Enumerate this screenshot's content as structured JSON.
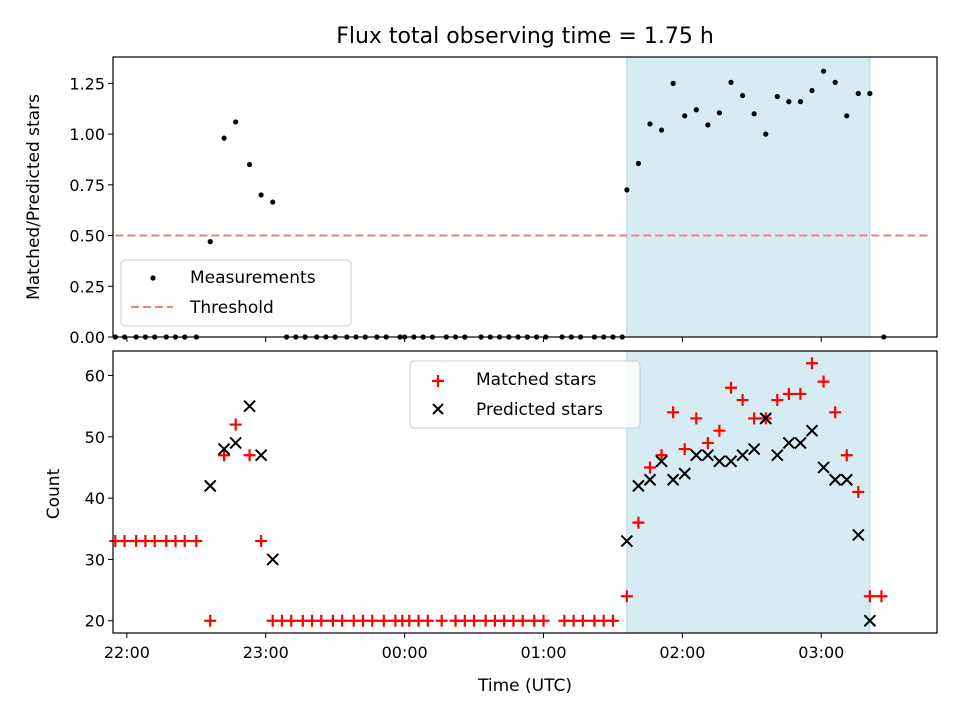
{
  "chart_data": [
    {
      "type": "scatter",
      "title": "Flux total observing time = 1.75 h",
      "xlabel": "",
      "ylabel": "Matched/Predicted stars",
      "xlim": [
        "21:54",
        "03:50"
      ],
      "ylim": [
        0,
        1.38
      ],
      "yticks": [
        "0.00",
        "0.25",
        "0.50",
        "0.75",
        "1.00",
        "1.25"
      ],
      "grid": false,
      "legend_position": "lower-left",
      "shaded_interval": [
        "01:36",
        "03:21"
      ],
      "threshold": {
        "name": "Threshold",
        "y": 0.5,
        "x": [
          "21:55",
          "03:47"
        ]
      },
      "series": [
        {
          "name": "Measurements",
          "points": [
            [
              "21:55",
              0
            ],
            [
              "21:59",
              0
            ],
            [
              "22:04",
              0
            ],
            [
              "22:08",
              0
            ],
            [
              "22:12",
              0
            ],
            [
              "22:17",
              0
            ],
            [
              "22:21",
              0
            ],
            [
              "22:25",
              0
            ],
            [
              "22:30",
              0
            ],
            [
              "22:36",
              0.47
            ],
            [
              "22:42",
              0.98
            ],
            [
              "22:47",
              1.06
            ],
            [
              "22:53",
              0.85
            ],
            [
              "22:58",
              0.7
            ],
            [
              "23:03",
              0.665
            ],
            [
              "23:09",
              0
            ],
            [
              "23:13",
              0
            ],
            [
              "23:17",
              0
            ],
            [
              "23:22",
              0
            ],
            [
              "23:26",
              0
            ],
            [
              "23:30",
              0
            ],
            [
              "23:35",
              0
            ],
            [
              "23:39",
              0
            ],
            [
              "23:43",
              0
            ],
            [
              "23:48",
              0
            ],
            [
              "23:52",
              0
            ],
            [
              "23:58",
              0
            ],
            [
              "00:00",
              0
            ],
            [
              "00:04",
              0
            ],
            [
              "00:08",
              0
            ],
            [
              "00:12",
              0
            ],
            [
              "00:18",
              0
            ],
            [
              "00:22",
              0
            ],
            [
              "00:26",
              0
            ],
            [
              "00:33",
              0
            ],
            [
              "00:37",
              0
            ],
            [
              "00:41",
              0
            ],
            [
              "00:45",
              0
            ],
            [
              "00:49",
              0
            ],
            [
              "00:53",
              0
            ],
            [
              "00:57",
              0
            ],
            [
              "01:01",
              0
            ],
            [
              "01:08",
              0
            ],
            [
              "01:12",
              0
            ],
            [
              "01:16",
              0
            ],
            [
              "01:22",
              0
            ],
            [
              "01:26",
              0
            ],
            [
              "01:30",
              0
            ],
            [
              "01:34",
              0
            ],
            [
              "01:36",
              0.725
            ],
            [
              "01:41",
              0.855
            ],
            [
              "01:46",
              1.05
            ],
            [
              "01:51",
              1.02
            ],
            [
              "01:56",
              1.25
            ],
            [
              "02:01",
              1.09
            ],
            [
              "02:06",
              1.12
            ],
            [
              "02:11",
              1.045
            ],
            [
              "02:16",
              1.105
            ],
            [
              "02:21",
              1.255
            ],
            [
              "02:26",
              1.19
            ],
            [
              "02:31",
              1.1
            ],
            [
              "02:36",
              1.0
            ],
            [
              "02:41",
              1.185
            ],
            [
              "02:46",
              1.16
            ],
            [
              "02:51",
              1.16
            ],
            [
              "02:56",
              1.215
            ],
            [
              "03:01",
              1.31
            ],
            [
              "03:06",
              1.255
            ],
            [
              "03:11",
              1.09
            ],
            [
              "03:16",
              1.2
            ],
            [
              "03:21",
              1.2
            ],
            [
              "03:27",
              0
            ]
          ]
        }
      ]
    },
    {
      "type": "scatter",
      "title": "",
      "xlabel": "Time (UTC)",
      "ylabel": "Count",
      "xlim": [
        "21:54",
        "03:50"
      ],
      "ylim": [
        18,
        64
      ],
      "yticks": [
        "20",
        "30",
        "40",
        "50",
        "60"
      ],
      "xticks": [
        "22:00",
        "23:00",
        "00:00",
        "01:00",
        "02:00",
        "03:00"
      ],
      "grid": false,
      "legend_position": "top-center",
      "shaded_interval": [
        "01:36",
        "03:21"
      ],
      "series": [
        {
          "name": "Matched stars",
          "points": [
            [
              "21:55",
              33
            ],
            [
              "21:59",
              33
            ],
            [
              "22:04",
              33
            ],
            [
              "22:08",
              33
            ],
            [
              "22:12",
              33
            ],
            [
              "22:17",
              33
            ],
            [
              "22:21",
              33
            ],
            [
              "22:25",
              33
            ],
            [
              "22:30",
              33
            ],
            [
              "22:36",
              20
            ],
            [
              "22:42",
              47
            ],
            [
              "22:47",
              52
            ],
            [
              "22:53",
              47
            ],
            [
              "22:58",
              33
            ],
            [
              "23:03",
              20
            ],
            [
              "23:07",
              20
            ],
            [
              "23:11",
              20
            ],
            [
              "23:16",
              20
            ],
            [
              "23:20",
              20
            ],
            [
              "23:24",
              20
            ],
            [
              "23:29",
              20
            ],
            [
              "23:33",
              20
            ],
            [
              "23:38",
              20
            ],
            [
              "23:42",
              20
            ],
            [
              "23:46",
              20
            ],
            [
              "23:51",
              20
            ],
            [
              "23:56",
              20
            ],
            [
              "23:59",
              20
            ],
            [
              "00:02",
              20
            ],
            [
              "00:06",
              20
            ],
            [
              "00:10",
              20
            ],
            [
              "00:16",
              20
            ],
            [
              "00:22",
              20
            ],
            [
              "00:26",
              20
            ],
            [
              "00:30",
              20
            ],
            [
              "00:35",
              20
            ],
            [
              "00:39",
              20
            ],
            [
              "00:43",
              20
            ],
            [
              "00:47",
              20
            ],
            [
              "00:51",
              20
            ],
            [
              "00:56",
              20
            ],
            [
              "01:00",
              20
            ],
            [
              "01:09",
              20
            ],
            [
              "01:13",
              20
            ],
            [
              "01:17",
              20
            ],
            [
              "01:22",
              20
            ],
            [
              "01:26",
              20
            ],
            [
              "01:30",
              20
            ],
            [
              "01:36",
              24
            ],
            [
              "01:41",
              36
            ],
            [
              "01:46",
              45
            ],
            [
              "01:51",
              47
            ],
            [
              "01:56",
              54
            ],
            [
              "02:01",
              48
            ],
            [
              "02:06",
              53
            ],
            [
              "02:11",
              49
            ],
            [
              "02:16",
              51
            ],
            [
              "02:21",
              58
            ],
            [
              "02:26",
              56
            ],
            [
              "02:31",
              53
            ],
            [
              "02:36",
              53
            ],
            [
              "02:41",
              56
            ],
            [
              "02:46",
              57
            ],
            [
              "02:51",
              57
            ],
            [
              "02:56",
              62
            ],
            [
              "03:01",
              59
            ],
            [
              "03:06",
              54
            ],
            [
              "03:11",
              47
            ],
            [
              "03:16",
              41
            ],
            [
              "03:21",
              24
            ],
            [
              "03:26",
              24
            ]
          ]
        },
        {
          "name": "Predicted stars",
          "points": [
            [
              "22:36",
              42
            ],
            [
              "22:42",
              48
            ],
            [
              "22:47",
              49
            ],
            [
              "22:53",
              55
            ],
            [
              "22:58",
              47
            ],
            [
              "23:03",
              30
            ],
            [
              "01:36",
              33
            ],
            [
              "01:41",
              42
            ],
            [
              "01:46",
              43
            ],
            [
              "01:51",
              46
            ],
            [
              "01:56",
              43
            ],
            [
              "02:01",
              44
            ],
            [
              "02:06",
              47
            ],
            [
              "02:11",
              47
            ],
            [
              "02:16",
              46
            ],
            [
              "02:21",
              46
            ],
            [
              "02:26",
              47
            ],
            [
              "02:31",
              48
            ],
            [
              "02:36",
              53
            ],
            [
              "02:41",
              47
            ],
            [
              "02:46",
              49
            ],
            [
              "02:51",
              49
            ],
            [
              "02:56",
              51
            ],
            [
              "03:01",
              45
            ],
            [
              "03:06",
              43
            ],
            [
              "03:11",
              43
            ],
            [
              "03:16",
              34
            ],
            [
              "03:21",
              20
            ]
          ]
        }
      ]
    }
  ],
  "colors": {
    "measurements": "#000000",
    "threshold": "#f08080",
    "matched": "#ff0000",
    "predicted": "#000000",
    "shade": "#add8e6"
  }
}
